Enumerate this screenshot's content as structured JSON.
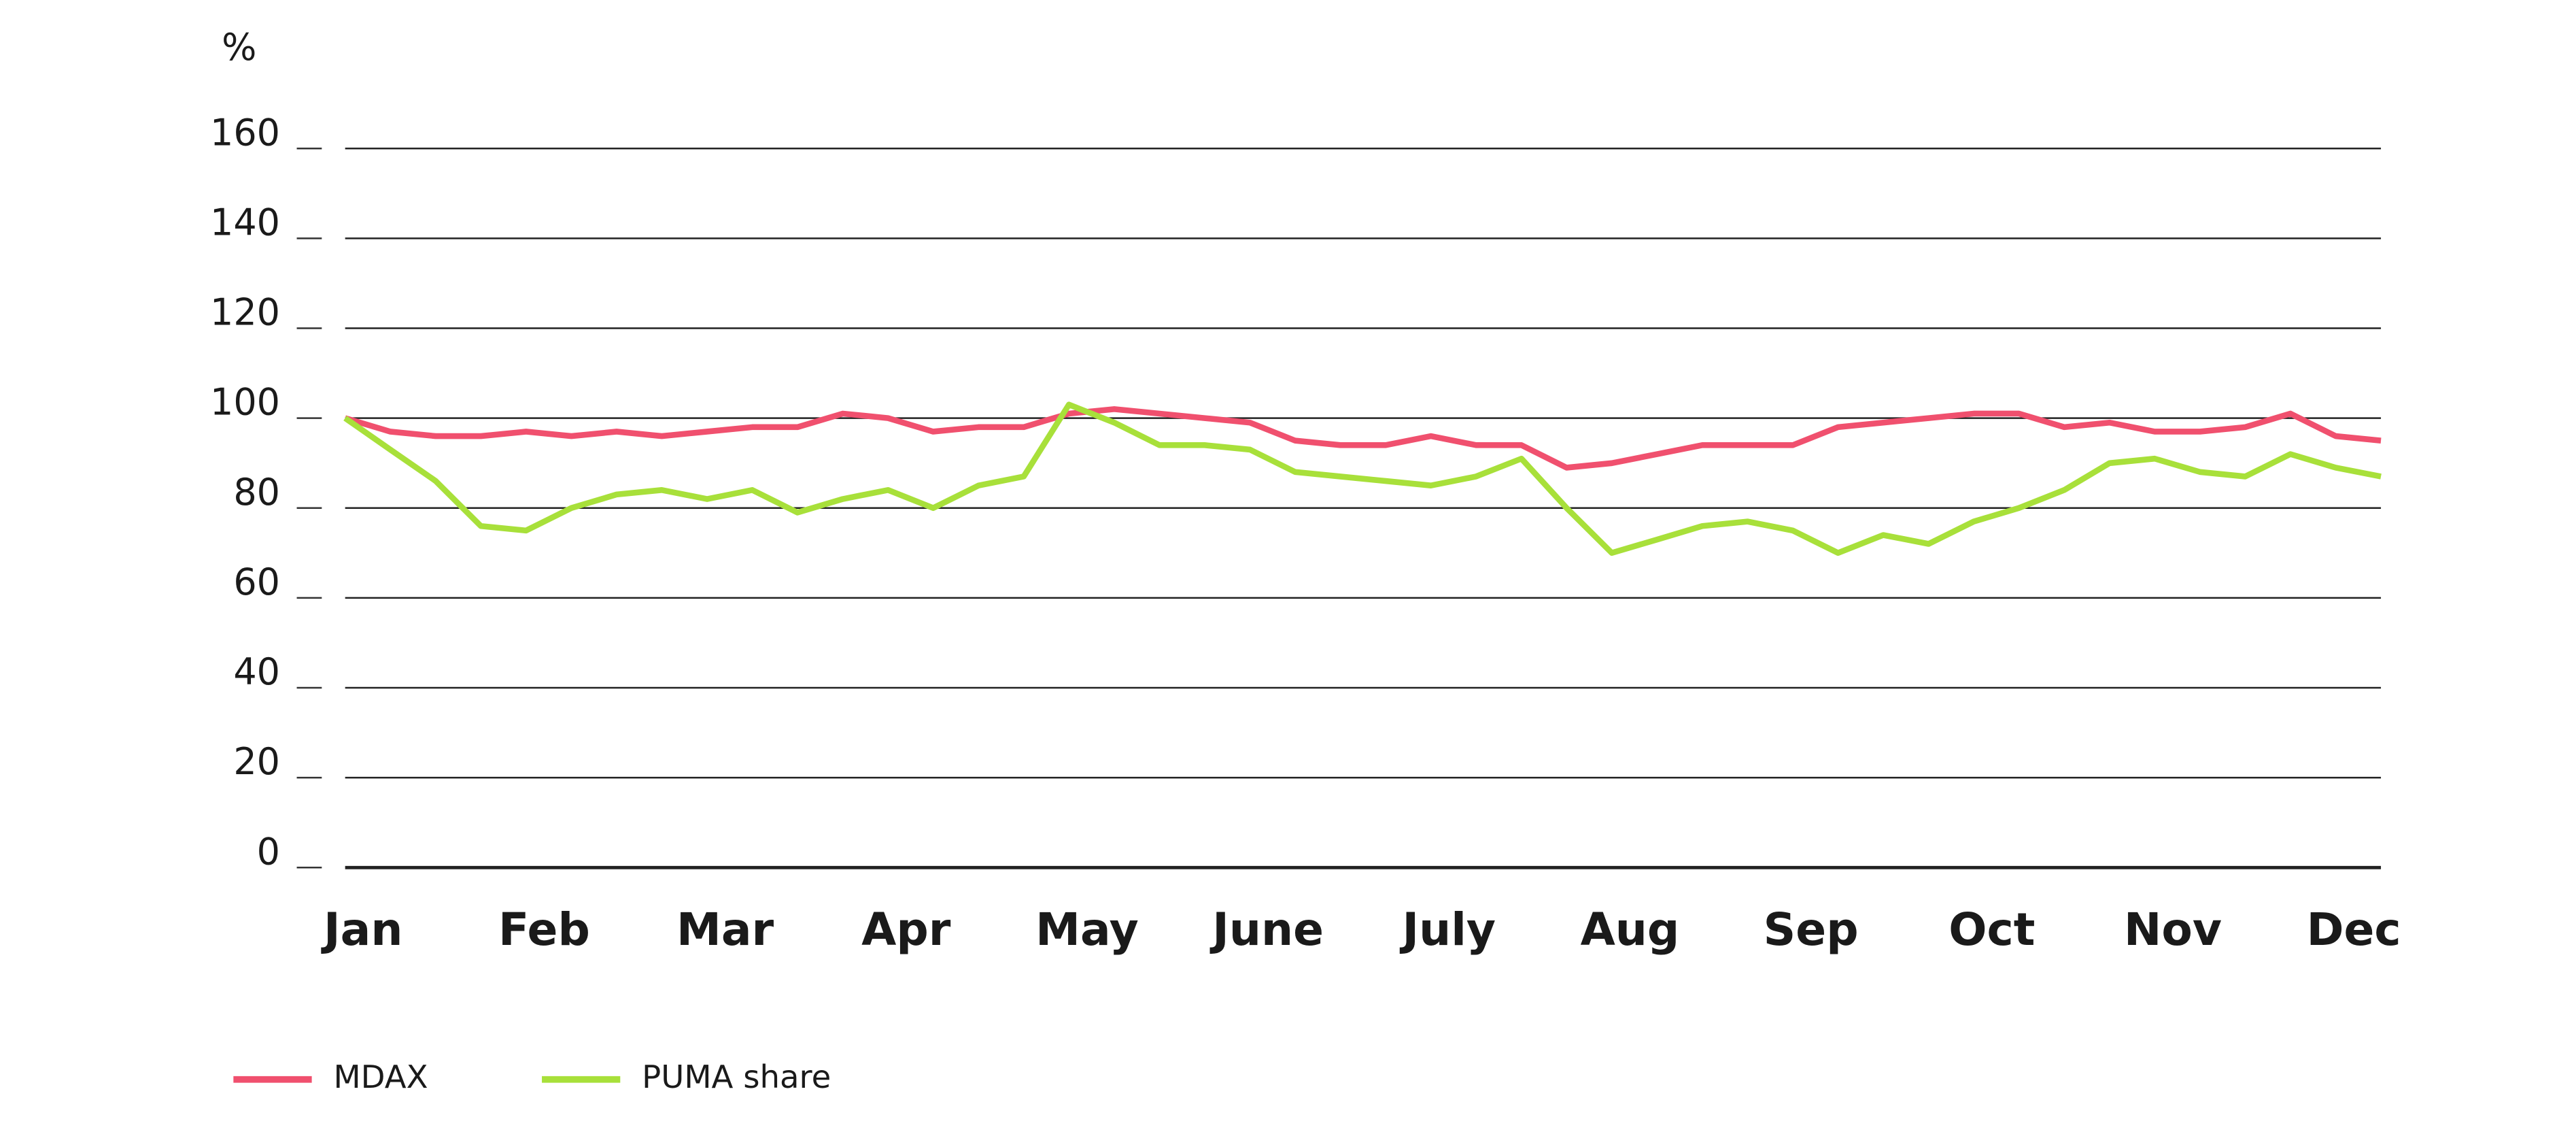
{
  "chart_data": {
    "type": "line",
    "y_unit": "%",
    "x": [
      -0.1,
      0.15,
      0.4,
      0.65,
      0.9,
      1.15,
      1.4,
      1.65,
      1.9,
      2.15,
      2.4,
      2.65,
      2.9,
      3.15,
      3.4,
      3.65,
      3.9,
      4.15,
      4.4,
      4.65,
      4.9,
      5.15,
      5.4,
      5.65,
      5.9,
      6.15,
      6.4,
      6.65,
      6.9,
      7.15,
      7.4,
      7.65,
      7.9,
      8.15,
      8.4,
      8.65,
      8.9,
      9.15,
      9.4,
      9.65,
      9.9,
      10.15,
      10.4,
      10.65,
      10.9,
      11.15
    ],
    "xlim": [
      -0.1,
      11.15
    ],
    "xticks": [
      {
        "value": 0,
        "label": "Jan"
      },
      {
        "value": 1,
        "label": "Feb"
      },
      {
        "value": 2,
        "label": "Mar"
      },
      {
        "value": 3,
        "label": "Apr"
      },
      {
        "value": 4,
        "label": "May"
      },
      {
        "value": 5,
        "label": "June"
      },
      {
        "value": 6,
        "label": "July"
      },
      {
        "value": 7,
        "label": "Aug"
      },
      {
        "value": 8,
        "label": "Sep"
      },
      {
        "value": 9,
        "label": "Oct"
      },
      {
        "value": 10,
        "label": "Nov"
      },
      {
        "value": 11,
        "label": "Dec"
      }
    ],
    "ylim": [
      0,
      160
    ],
    "yticks": [
      0,
      20,
      40,
      60,
      80,
      100,
      120,
      140,
      160
    ],
    "grid": true,
    "legend": "bottom-left",
    "series": [
      {
        "name": "MDAX",
        "color": "#f0506e",
        "values": [
          100,
          97,
          96,
          96,
          97,
          96,
          97,
          96,
          97,
          98,
          98,
          101,
          100,
          97,
          98,
          98,
          101,
          102,
          101,
          100,
          99,
          95,
          94,
          94,
          96,
          94,
          94,
          89,
          90,
          92,
          94,
          94,
          94,
          98,
          99,
          100,
          101,
          101,
          98,
          99,
          97,
          97,
          98,
          101,
          96,
          95
        ]
      },
      {
        "name": "PUMA share",
        "color": "#a8e03a",
        "values": [
          100,
          93,
          86,
          76,
          75,
          80,
          83,
          84,
          82,
          84,
          79,
          82,
          84,
          80,
          85,
          87,
          103,
          99,
          94,
          94,
          93,
          88,
          87,
          86,
          85,
          87,
          91,
          80,
          70,
          73,
          76,
          77,
          75,
          70,
          74,
          72,
          77,
          80,
          84,
          90,
          91,
          88,
          87,
          92,
          89,
          87
        ]
      }
    ]
  }
}
